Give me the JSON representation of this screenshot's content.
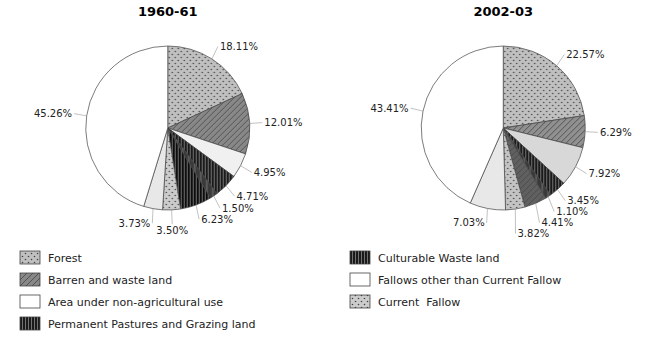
{
  "chart_data": [
    {
      "type": "pie",
      "title": "1960-61",
      "values": [
        18.11,
        12.01,
        4.95,
        4.71,
        1.5,
        6.23,
        3.5,
        3.73,
        45.26
      ],
      "value_labels": [
        "18.11%",
        "12.01%",
        "4.95%",
        "4.71%",
        "1.50%",
        "6.23%",
        "3.50%",
        "3.73%",
        "45.26%"
      ],
      "colors": [
        "#c0c0c0",
        "#888888",
        "#f0f0f0",
        "#1a1a1a",
        "#3a3a3a",
        "#0d0d0d",
        "#cccccc",
        "#e8e8e8",
        "#ffffff"
      ],
      "data_labels": true,
      "annotations": [
        {
          "text": "Forest",
          "color": "#c0c0c0"
        },
        {
          "text": "Barren and waste land",
          "color": "#888888"
        },
        {
          "text": "Area under non-agricultural use",
          "color": "#ffffff"
        },
        {
          "text": "Permanent Pastures and Grazing land",
          "color": "#1a1a1a"
        }
      ]
    },
    {
      "type": "pie",
      "title": "2002-03",
      "values": [
        22.57,
        6.29,
        7.92,
        3.45,
        1.1,
        4.41,
        3.82,
        7.03,
        43.41
      ],
      "value_labels": [
        "22.57%",
        "6.29%",
        "7.92%",
        "3.45%",
        "1.10%",
        "4.41%",
        "3.82%",
        "7.03%",
        "43.41%"
      ],
      "colors": [
        "#c0c0c0",
        "#909090",
        "#d8d8d8",
        "#1a1a1a",
        "#3a3a3a",
        "#606060",
        "#c4c4c4",
        "#e8e8e8",
        "#ffffff"
      ],
      "data_labels": true,
      "annotations": [
        {
          "text": "Culturable Waste land",
          "color": "#1a1a1a"
        },
        {
          "text": "Fallows other than Current Fallow",
          "color": "#ffffff"
        },
        {
          "text": "Current  Fallow",
          "color": "#cccccc"
        }
      ]
    }
  ]
}
